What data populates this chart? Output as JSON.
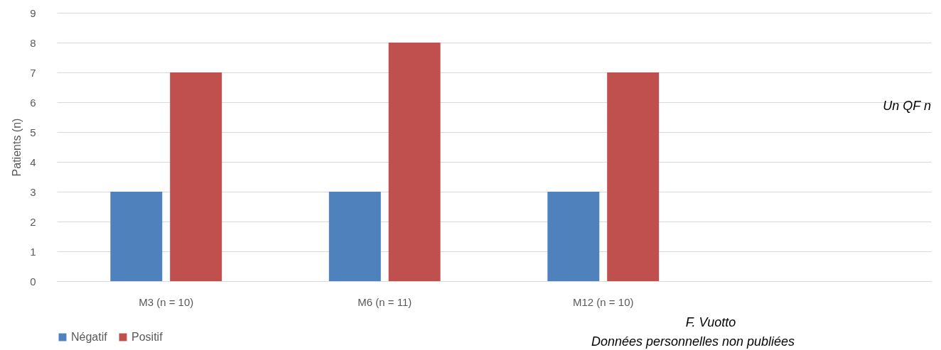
{
  "chart_data": {
    "type": "bar",
    "ylabel": "Patients (n)",
    "categories": [
      "M3 (n = 10)",
      "M6 (n = 11)",
      "M12 (n = 10)",
      null
    ],
    "series": [
      {
        "name": "Négatif",
        "color": "#4f81bd",
        "values": [
          3,
          3,
          3,
          null
        ]
      },
      {
        "name": "Positif",
        "color": "#c0504d",
        "values": [
          7,
          8,
          7,
          null
        ]
      }
    ],
    "ylim": [
      0,
      9
    ],
    "yticks": [
      0,
      1,
      2,
      3,
      4,
      5,
      6,
      7,
      8,
      9
    ],
    "grid": "y",
    "legend": "bottom",
    "annotations": [
      "Un QF n",
      "F. Vuotto",
      "Données personnelles non publiées"
    ]
  }
}
